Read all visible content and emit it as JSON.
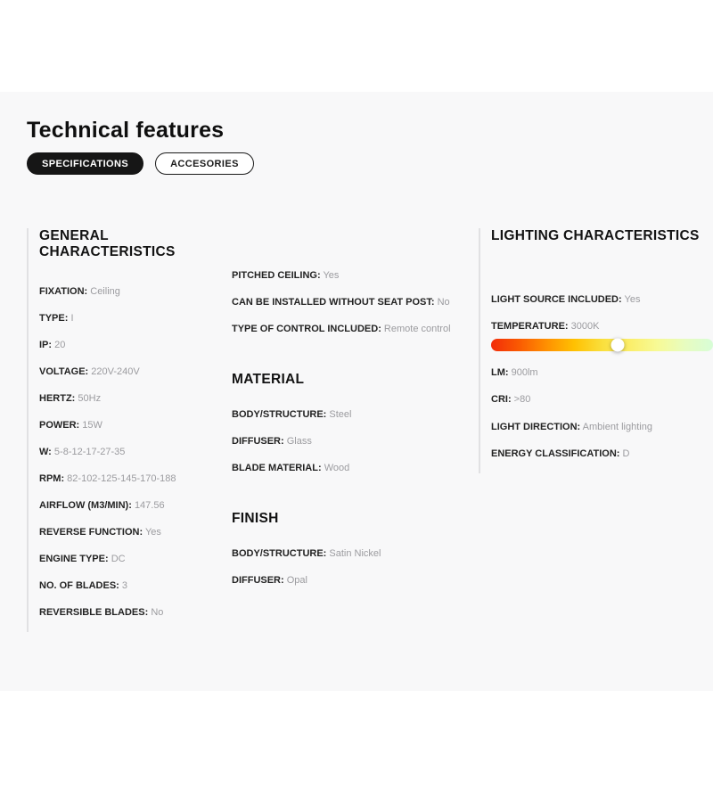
{
  "page": {
    "title": "Technical features"
  },
  "tabs": [
    {
      "label": "SPECIFICATIONS",
      "active": true
    },
    {
      "label": "ACCESORIES",
      "active": false
    }
  ],
  "general": {
    "heading": "GENERAL CHARACTERISTICS",
    "rows": [
      {
        "label": "FIXATION:",
        "value": "Ceiling"
      },
      {
        "label": "TYPE:",
        "value": "I"
      },
      {
        "label": "IP:",
        "value": "20"
      },
      {
        "label": "VOLTAGE:",
        "value": "220V-240V"
      },
      {
        "label": "HERTZ:",
        "value": "50Hz"
      },
      {
        "label": "POWER:",
        "value": "15W"
      },
      {
        "label": "W:",
        "value": "5-8-12-17-27-35"
      },
      {
        "label": "RPM:",
        "value": "82-102-125-145-170-188"
      },
      {
        "label": "AIRFLOW (M3/MIN):",
        "value": "147.56"
      },
      {
        "label": "REVERSE FUNCTION:",
        "value": "Yes"
      },
      {
        "label": "ENGINE TYPE:",
        "value": "DC"
      },
      {
        "label": "NO. OF BLADES:",
        "value": "3"
      },
      {
        "label": "REVERSIBLE BLADES:",
        "value": "No"
      }
    ]
  },
  "install": {
    "rows": [
      {
        "label": "PITCHED CEILING:",
        "value": "Yes"
      },
      {
        "label": "CAN BE INSTALLED WITHOUT SEAT POST:",
        "value": "No"
      },
      {
        "label": "TYPE OF CONTROL INCLUDED:",
        "value": "Remote control"
      }
    ]
  },
  "material": {
    "heading": "MATERIAL",
    "rows": [
      {
        "label": "BODY/STRUCTURE:",
        "value": "Steel"
      },
      {
        "label": "DIFFUSER:",
        "value": "Glass"
      },
      {
        "label": "BLADE MATERIAL:",
        "value": "Wood"
      }
    ]
  },
  "finish": {
    "heading": "FINISH",
    "rows": [
      {
        "label": "BODY/STRUCTURE:",
        "value": "Satin Nickel"
      },
      {
        "label": "DIFFUSER:",
        "value": "Opal"
      }
    ]
  },
  "lighting": {
    "heading": "LIGHTING CHARACTERISTICS",
    "rows_top": [
      {
        "label": "LIGHT SOURCE INCLUDED:",
        "value": "Yes"
      },
      {
        "label": "TEMPERATURE:",
        "value": "3000K"
      }
    ],
    "temperature_slider": {
      "marker_percent": 57,
      "gradient_colors": [
        "#f22c09",
        "#fa5a02",
        "#ff9001",
        "#ffc102",
        "#fadf3c",
        "#fbee6a",
        "#f7fa96",
        "#e7fcc0",
        "#d7fdd7"
      ]
    },
    "rows_bottom": [
      {
        "label": "LM:",
        "value": "900lm"
      },
      {
        "label": "CRI:",
        "value": ">80"
      },
      {
        "label": "LIGHT DIRECTION:",
        "value": "Ambient lighting"
      },
      {
        "label": "ENERGY CLASSIFICATION:",
        "value": "D"
      }
    ]
  }
}
